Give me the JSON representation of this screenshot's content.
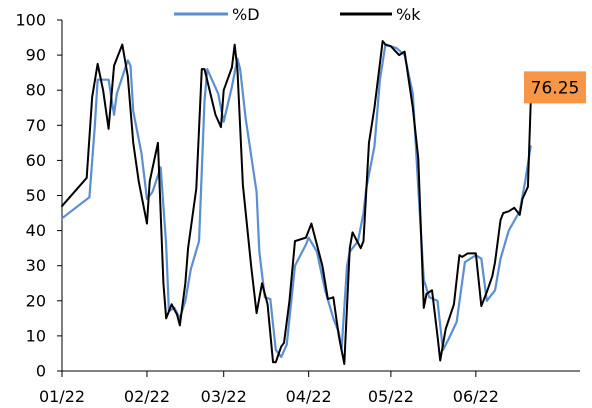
{
  "chart_data": {
    "type": "line",
    "title": "",
    "xlabel": "",
    "ylabel": "",
    "ylim": [
      0,
      100
    ],
    "y_ticks": [
      0,
      10,
      20,
      30,
      40,
      50,
      60,
      70,
      80,
      90,
      100
    ],
    "x_ticks": [
      "01/22",
      "02/22",
      "03/22",
      "04/22",
      "05/22",
      "06/22"
    ],
    "x_range": [
      "2022-01-01",
      "2022-07-09"
    ],
    "grid": false,
    "legend": "top",
    "series": [
      {
        "name": "%D",
        "color": "#5b8fd1",
        "points": [
          [
            "2022-01-01",
            43.5
          ],
          [
            "2022-01-11",
            49.5
          ],
          [
            "2022-01-13",
            70.0
          ],
          [
            "2022-01-14",
            83.0
          ],
          [
            "2022-01-18",
            83.0
          ],
          [
            "2022-01-20",
            73.0
          ],
          [
            "2022-01-21",
            79.0
          ],
          [
            "2022-01-25",
            88.5
          ],
          [
            "2022-01-26",
            87.0
          ],
          [
            "2022-01-27",
            74.0
          ],
          [
            "2022-01-30",
            62.0
          ],
          [
            "2022-02-01",
            49.0
          ],
          [
            "2022-02-03",
            51.0
          ],
          [
            "2022-02-06",
            58.0
          ],
          [
            "2022-02-08",
            36.0
          ],
          [
            "2022-02-09",
            17.0
          ],
          [
            "2022-02-11",
            18.0
          ],
          [
            "2022-02-13",
            15.0
          ],
          [
            "2022-02-15",
            20.0
          ],
          [
            "2022-02-17",
            29.0
          ],
          [
            "2022-02-20",
            37.0
          ],
          [
            "2022-02-22",
            77.0
          ],
          [
            "2022-02-23",
            86.0
          ],
          [
            "2022-02-27",
            79.0
          ],
          [
            "2022-03-01",
            71.0
          ],
          [
            "2022-03-04",
            81.0
          ],
          [
            "2022-03-06",
            89.0
          ],
          [
            "2022-03-07",
            86.0
          ],
          [
            "2022-03-09",
            72.0
          ],
          [
            "2022-03-13",
            51.0
          ],
          [
            "2022-03-14",
            34.0
          ],
          [
            "2022-03-16",
            21.0
          ],
          [
            "2022-03-18",
            20.5
          ],
          [
            "2022-03-20",
            6.0
          ],
          [
            "2022-03-22",
            4.0
          ],
          [
            "2022-03-24",
            7.5
          ],
          [
            "2022-03-27",
            30.0
          ],
          [
            "2022-03-31",
            36.0
          ],
          [
            "2022-04-01",
            38.0
          ],
          [
            "2022-04-04",
            34.0
          ],
          [
            "2022-04-07",
            23.0
          ],
          [
            "2022-04-10",
            15.0
          ],
          [
            "2022-04-12",
            11.0
          ],
          [
            "2022-04-13",
            6.0
          ],
          [
            "2022-04-15",
            30.0
          ],
          [
            "2022-04-16",
            34.0
          ],
          [
            "2022-04-19",
            37.0
          ],
          [
            "2022-04-21",
            45.0
          ],
          [
            "2022-04-22",
            52.0
          ],
          [
            "2022-04-25",
            64.0
          ],
          [
            "2022-04-27",
            83.0
          ],
          [
            "2022-04-29",
            93.0
          ],
          [
            "2022-05-03",
            92.0
          ],
          [
            "2022-05-06",
            90.0
          ],
          [
            "2022-05-09",
            79.0
          ],
          [
            "2022-05-11",
            52.0
          ],
          [
            "2022-05-13",
            26.0
          ],
          [
            "2022-05-15",
            21.0
          ],
          [
            "2022-05-18",
            20.0
          ],
          [
            "2022-05-20",
            6.0
          ],
          [
            "2022-05-22",
            9.0
          ],
          [
            "2022-05-25",
            14.0
          ],
          [
            "2022-05-28",
            31.0
          ],
          [
            "2022-06-01",
            33.0
          ],
          [
            "2022-06-03",
            32.0
          ],
          [
            "2022-06-05",
            20.0
          ],
          [
            "2022-06-08",
            23.0
          ],
          [
            "2022-06-10",
            32.0
          ],
          [
            "2022-06-13",
            40.0
          ],
          [
            "2022-06-17",
            45.5
          ],
          [
            "2022-06-19",
            54.0
          ],
          [
            "2022-06-21",
            64.0
          ]
        ]
      },
      {
        "name": "%k",
        "color": "#000000",
        "points": [
          [
            "2022-01-01",
            47.0
          ],
          [
            "2022-01-10",
            55.0
          ],
          [
            "2022-01-12",
            78.0
          ],
          [
            "2022-01-14",
            87.5
          ],
          [
            "2022-01-16",
            80.0
          ],
          [
            "2022-01-18",
            69.0
          ],
          [
            "2022-01-20",
            87.0
          ],
          [
            "2022-01-23",
            93.0
          ],
          [
            "2022-01-25",
            84.0
          ],
          [
            "2022-01-27",
            65.0
          ],
          [
            "2022-01-29",
            54.0
          ],
          [
            "2022-01-31",
            46.0
          ],
          [
            "2022-02-01",
            42.0
          ],
          [
            "2022-02-02",
            54.0
          ],
          [
            "2022-02-05",
            65.0
          ],
          [
            "2022-02-07",
            25.0
          ],
          [
            "2022-02-08",
            15.0
          ],
          [
            "2022-02-10",
            19.0
          ],
          [
            "2022-02-12",
            16.0
          ],
          [
            "2022-02-13",
            13.0
          ],
          [
            "2022-02-15",
            25.0
          ],
          [
            "2022-02-16",
            35.0
          ],
          [
            "2022-02-19",
            52.0
          ],
          [
            "2022-02-21",
            86.0
          ],
          [
            "2022-02-22",
            86.0
          ],
          [
            "2022-02-26",
            73.0
          ],
          [
            "2022-02-28",
            69.5
          ],
          [
            "2022-03-01",
            80.0
          ],
          [
            "2022-03-04",
            86.5
          ],
          [
            "2022-03-05",
            93.0
          ],
          [
            "2022-03-06",
            86.0
          ],
          [
            "2022-03-08",
            53.0
          ],
          [
            "2022-03-11",
            30.0
          ],
          [
            "2022-03-13",
            16.5
          ],
          [
            "2022-03-15",
            25.0
          ],
          [
            "2022-03-17",
            19.0
          ],
          [
            "2022-03-19",
            2.5
          ],
          [
            "2022-03-20",
            2.5
          ],
          [
            "2022-03-22",
            7.0
          ],
          [
            "2022-03-23",
            8.0
          ],
          [
            "2022-03-25",
            20.0
          ],
          [
            "2022-03-27",
            37.0
          ],
          [
            "2022-03-29",
            37.5
          ],
          [
            "2022-03-31",
            38.0
          ],
          [
            "2022-04-02",
            42.0
          ],
          [
            "2022-04-04",
            36.0
          ],
          [
            "2022-04-06",
            30.0
          ],
          [
            "2022-04-08",
            20.5
          ],
          [
            "2022-04-10",
            21.0
          ],
          [
            "2022-04-12",
            10.0
          ],
          [
            "2022-04-14",
            2.0
          ],
          [
            "2022-04-16",
            35.0
          ],
          [
            "2022-04-17",
            39.5
          ],
          [
            "2022-04-19",
            36.5
          ],
          [
            "2022-04-20",
            35.0
          ],
          [
            "2022-04-21",
            37.0
          ],
          [
            "2022-04-23",
            65.0
          ],
          [
            "2022-04-25",
            75.0
          ],
          [
            "2022-04-28",
            94.0
          ],
          [
            "2022-04-29",
            93.0
          ],
          [
            "2022-05-01",
            92.5
          ],
          [
            "2022-05-04",
            90.0
          ],
          [
            "2022-05-06",
            91.0
          ],
          [
            "2022-05-09",
            75.0
          ],
          [
            "2022-05-11",
            60.5
          ],
          [
            "2022-05-13",
            18.0
          ],
          [
            "2022-05-14",
            22.0
          ],
          [
            "2022-05-16",
            23.0
          ],
          [
            "2022-05-18",
            10.0
          ],
          [
            "2022-05-19",
            3.0
          ],
          [
            "2022-05-21",
            12.0
          ],
          [
            "2022-05-24",
            19.0
          ],
          [
            "2022-05-26",
            33.0
          ],
          [
            "2022-05-27",
            32.5
          ],
          [
            "2022-05-29",
            33.5
          ],
          [
            "2022-06-01",
            33.5
          ],
          [
            "2022-06-03",
            18.5
          ],
          [
            "2022-06-05",
            22.5
          ],
          [
            "2022-06-07",
            27.0
          ],
          [
            "2022-06-08",
            31.0
          ],
          [
            "2022-06-10",
            43.0
          ],
          [
            "2022-06-11",
            45.0
          ],
          [
            "2022-06-13",
            45.5
          ],
          [
            "2022-06-15",
            46.5
          ],
          [
            "2022-06-17",
            44.5
          ],
          [
            "2022-06-18",
            49.0
          ],
          [
            "2022-06-20",
            52.5
          ],
          [
            "2022-06-21",
            76.25
          ]
        ]
      }
    ],
    "annotations": [
      {
        "text": "76.25",
        "series": "%k",
        "value": 76.25,
        "color": "#f79646"
      }
    ]
  }
}
